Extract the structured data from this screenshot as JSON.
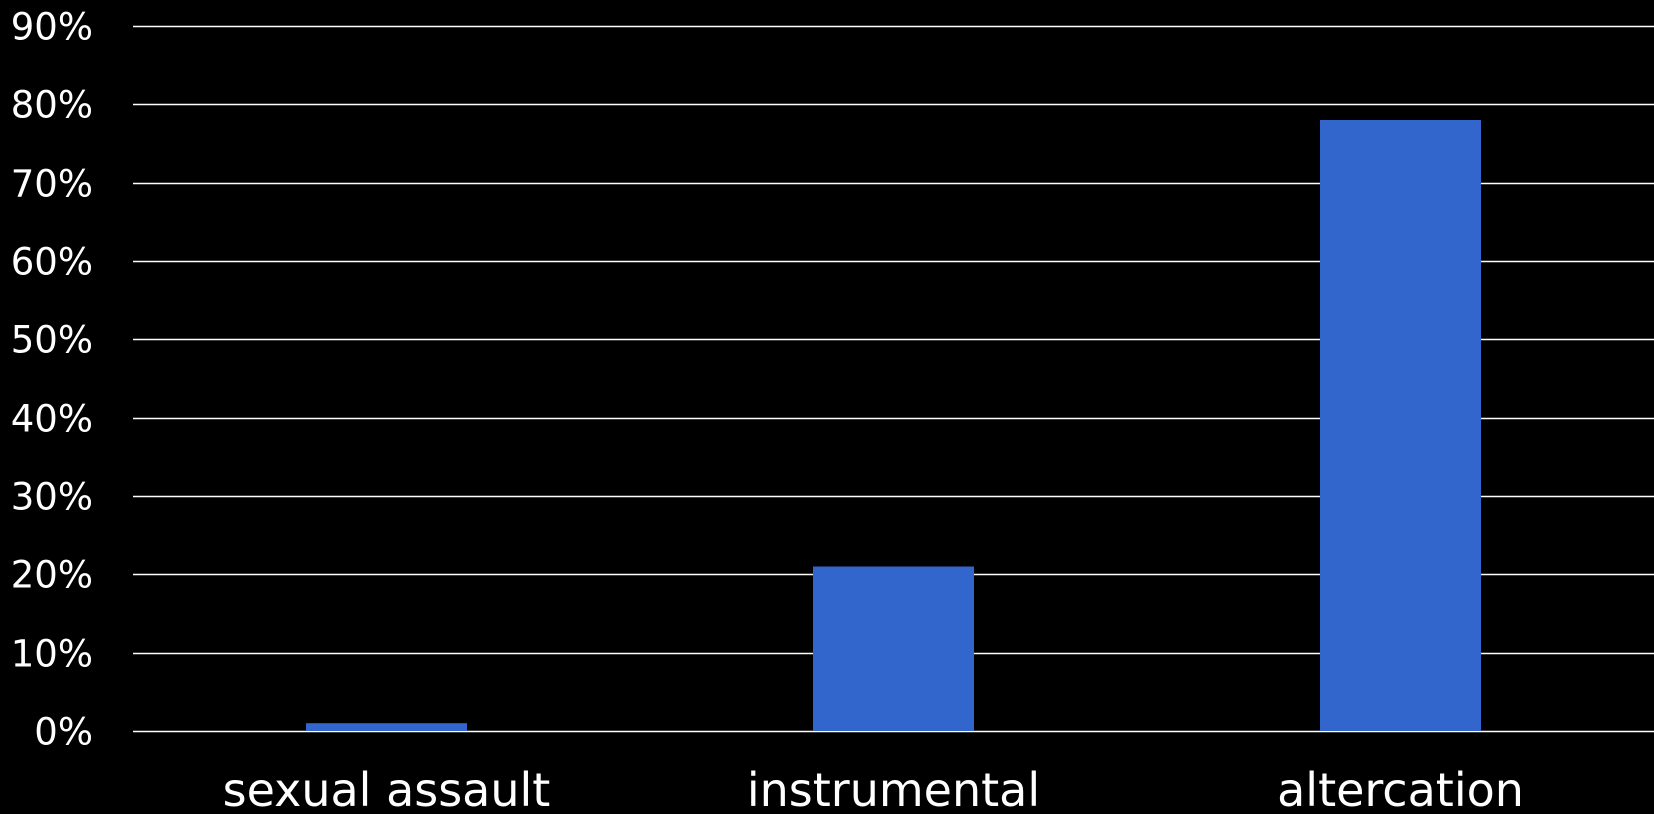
{
  "chart_data": {
    "type": "bar",
    "title": "",
    "xlabel": "",
    "ylabel": "",
    "categories": [
      "sexual assault",
      "instrumental",
      "altercation"
    ],
    "series": [
      {
        "values": [
          0.01,
          0.21,
          0.78
        ]
      }
    ],
    "ylim": [
      0,
      0.9
    ],
    "yticks": [
      0,
      0.1,
      0.2,
      0.3,
      0.4,
      0.5,
      0.6,
      0.7,
      0.8,
      0.9
    ],
    "ytick_labels": [
      "0%",
      "10%",
      "20%",
      "30%",
      "40%",
      "50%",
      "60%",
      "70%",
      "80%",
      "90%"
    ],
    "grid": true,
    "legend": "none",
    "colors": {
      "background": "#000000",
      "bar": "#3366CC",
      "grid": "#FFFFFF",
      "text": "#FFFFFF"
    }
  }
}
